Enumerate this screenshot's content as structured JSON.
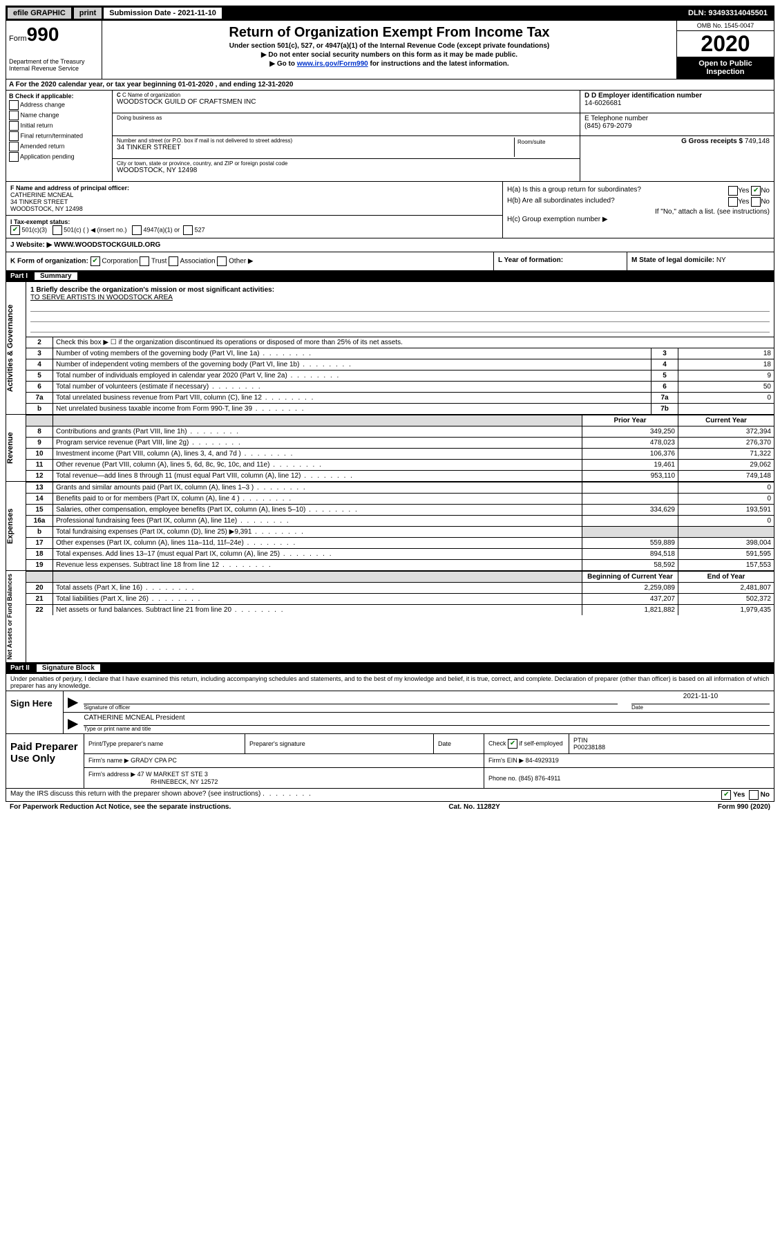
{
  "top_bar": {
    "efile": "efile GRAPHIC",
    "print": "print",
    "submission": "Submission Date - 2021-11-10",
    "dln": "DLN: 93493314045501"
  },
  "header": {
    "form_prefix": "Form",
    "form_number": "990",
    "title": "Return of Organization Exempt From Income Tax",
    "subtitle": "Under section 501(c), 527, or 4947(a)(1) of the Internal Revenue Code (except private foundations)",
    "note1": "▶ Do not enter social security numbers on this form as it may be made public.",
    "note2_prefix": "▶ Go to ",
    "note2_link": "www.irs.gov/Form990",
    "note2_suffix": " for instructions and the latest information.",
    "dept": "Department of the Treasury\nInternal Revenue Service",
    "omb": "OMB No. 1545-0047",
    "year": "2020",
    "open": "Open to Public Inspection"
  },
  "row_a": "A For the 2020 calendar year, or tax year beginning 01-01-2020   , and ending 12-31-2020",
  "section_b": {
    "label": "B Check if applicable:",
    "items": [
      "Address change",
      "Name change",
      "Initial return",
      "Final return/terminated",
      "Amended return",
      "Application pending"
    ]
  },
  "section_c": {
    "name_label": "C Name of organization",
    "name": "WOODSTOCK GUILD OF CRAFTSMEN INC",
    "dba_label": "Doing business as",
    "dba": "",
    "addr_label": "Number and street (or P.O. box if mail is not delivered to street address)",
    "addr": "34 TINKER STREET",
    "suite_label": "Room/suite",
    "city_label": "City or town, state or province, country, and ZIP or foreign postal code",
    "city": "WOODSTOCK, NY  12498"
  },
  "section_d": {
    "ein_label": "D Employer identification number",
    "ein": "14-6026681",
    "phone_label": "E Telephone number",
    "phone": "(845) 679-2079",
    "gross_label": "G Gross receipts $",
    "gross": "749,148"
  },
  "section_f": {
    "label": "F  Name and address of principal officer:",
    "name": "CATHERINE MCNEAL",
    "addr1": "34 TINKER STREET",
    "addr2": "WOODSTOCK, NY  12498"
  },
  "section_h": {
    "ha": "H(a)  Is this a group return for subordinates?",
    "hb": "H(b)  Are all subordinates included?",
    "hb_note": "If \"No,\" attach a list. (see instructions)",
    "hc": "H(c)  Group exemption number ▶",
    "yes": "Yes",
    "no": "No"
  },
  "row_i": {
    "label": "I   Tax-exempt status:",
    "opt1": "501(c)(3)",
    "opt2": "501(c) (   ) ◀ (insert no.)",
    "opt3": "4947(a)(1) or",
    "opt4": "527"
  },
  "row_j": {
    "label": "J   Website: ▶",
    "value": "WWW.WOODSTOCKGUILD.ORG"
  },
  "row_k": {
    "k_label": "K Form of organization:",
    "corp": "Corporation",
    "trust": "Trust",
    "assoc": "Association",
    "other": "Other ▶",
    "l_label": "L Year of formation:",
    "m_label": "M State of legal domicile:",
    "m_value": "NY"
  },
  "part1": {
    "label": "Part I",
    "title": "Summary"
  },
  "mission": {
    "label": "1  Briefly describe the organization's mission or most significant activities:",
    "text": "TO SERVE ARTISTS IN WOODSTOCK AREA"
  },
  "activities": {
    "tab": "Activities & Governance",
    "rows": [
      {
        "n": "2",
        "desc": "Check this box ▶ ☐  if the organization discontinued its operations or disposed of more than 25% of its net assets."
      },
      {
        "n": "3",
        "desc": "Number of voting members of the governing body (Part VI, line 1a)",
        "box": "3",
        "val": "18"
      },
      {
        "n": "4",
        "desc": "Number of independent voting members of the governing body (Part VI, line 1b)",
        "box": "4",
        "val": "18"
      },
      {
        "n": "5",
        "desc": "Total number of individuals employed in calendar year 2020 (Part V, line 2a)",
        "box": "5",
        "val": "9"
      },
      {
        "n": "6",
        "desc": "Total number of volunteers (estimate if necessary)",
        "box": "6",
        "val": "50"
      },
      {
        "n": "7a",
        "desc": "Total unrelated business revenue from Part VIII, column (C), line 12",
        "box": "7a",
        "val": "0"
      },
      {
        "n": "b",
        "desc": "Net unrelated business taxable income from Form 990-T, line 39",
        "box": "7b",
        "val": ""
      }
    ]
  },
  "revenue": {
    "tab": "Revenue",
    "hdr_prior": "Prior Year",
    "hdr_current": "Current Year",
    "rows": [
      {
        "n": "8",
        "desc": "Contributions and grants (Part VIII, line 1h)",
        "prior": "349,250",
        "curr": "372,394"
      },
      {
        "n": "9",
        "desc": "Program service revenue (Part VIII, line 2g)",
        "prior": "478,023",
        "curr": "276,370"
      },
      {
        "n": "10",
        "desc": "Investment income (Part VIII, column (A), lines 3, 4, and 7d )",
        "prior": "106,376",
        "curr": "71,322"
      },
      {
        "n": "11",
        "desc": "Other revenue (Part VIII, column (A), lines 5, 6d, 8c, 9c, 10c, and 11e)",
        "prior": "19,461",
        "curr": "29,062"
      },
      {
        "n": "12",
        "desc": "Total revenue—add lines 8 through 11 (must equal Part VIII, column (A), line 12)",
        "prior": "953,110",
        "curr": "749,148"
      }
    ]
  },
  "expenses": {
    "tab": "Expenses",
    "rows": [
      {
        "n": "13",
        "desc": "Grants and similar amounts paid (Part IX, column (A), lines 1–3 )",
        "prior": "",
        "curr": "0"
      },
      {
        "n": "14",
        "desc": "Benefits paid to or for members (Part IX, column (A), line 4 )",
        "prior": "",
        "curr": "0"
      },
      {
        "n": "15",
        "desc": "Salaries, other compensation, employee benefits (Part IX, column (A), lines 5–10)",
        "prior": "334,629",
        "curr": "193,591"
      },
      {
        "n": "16a",
        "desc": "Professional fundraising fees (Part IX, column (A), line 11e)",
        "prior": "",
        "curr": "0"
      },
      {
        "n": "b",
        "desc": "Total fundraising expenses (Part IX, column (D), line 25) ▶9,391",
        "prior": "shade",
        "curr": "shade"
      },
      {
        "n": "17",
        "desc": "Other expenses (Part IX, column (A), lines 11a–11d, 11f–24e)",
        "prior": "559,889",
        "curr": "398,004"
      },
      {
        "n": "18",
        "desc": "Total expenses. Add lines 13–17 (must equal Part IX, column (A), line 25)",
        "prior": "894,518",
        "curr": "591,595"
      },
      {
        "n": "19",
        "desc": "Revenue less expenses. Subtract line 18 from line 12",
        "prior": "58,592",
        "curr": "157,553"
      }
    ]
  },
  "netassets": {
    "tab": "Net Assets or Fund Balances",
    "hdr_beg": "Beginning of Current Year",
    "hdr_end": "End of Year",
    "rows": [
      {
        "n": "20",
        "desc": "Total assets (Part X, line 16)",
        "beg": "2,259,089",
        "end": "2,481,807"
      },
      {
        "n": "21",
        "desc": "Total liabilities (Part X, line 26)",
        "beg": "437,207",
        "end": "502,372"
      },
      {
        "n": "22",
        "desc": "Net assets or fund balances. Subtract line 21 from line 20",
        "beg": "1,821,882",
        "end": "1,979,435"
      }
    ]
  },
  "part2": {
    "label": "Part II",
    "title": "Signature Block"
  },
  "perjury": "Under penalties of perjury, I declare that I have examined this return, including accompanying schedules and statements, and to the best of my knowledge and belief, it is true, correct, and complete. Declaration of preparer (other than officer) is based on all information of which preparer has any knowledge.",
  "sign": {
    "here": "Sign Here",
    "sig_label": "Signature of officer",
    "date": "2021-11-10",
    "date_label": "Date",
    "name": "CATHERINE MCNEAL President",
    "name_label": "Type or print name and title"
  },
  "paid": {
    "label": "Paid Preparer Use Only",
    "col1": "Print/Type preparer's name",
    "col2": "Preparer's signature",
    "col3": "Date",
    "col4a": "Check",
    "col4b": "if self-employed",
    "col5": "PTIN",
    "ptin": "P00238188",
    "firm_name_label": "Firm's name    ▶",
    "firm_name": "GRADY CPA PC",
    "firm_ein_label": "Firm's EIN ▶",
    "firm_ein": "84-4929319",
    "firm_addr_label": "Firm's address ▶",
    "firm_addr1": "47 W MARKET ST STE 3",
    "firm_addr2": "RHINEBECK, NY  12572",
    "phone_label": "Phone no.",
    "phone": "(845) 876-4911"
  },
  "discuss": {
    "text": "May the IRS discuss this return with the preparer shown above? (see instructions)",
    "yes": "Yes",
    "no": "No"
  },
  "footer": {
    "left": "For Paperwork Reduction Act Notice, see the separate instructions.",
    "mid": "Cat. No. 11282Y",
    "right": "Form 990 (2020)"
  }
}
